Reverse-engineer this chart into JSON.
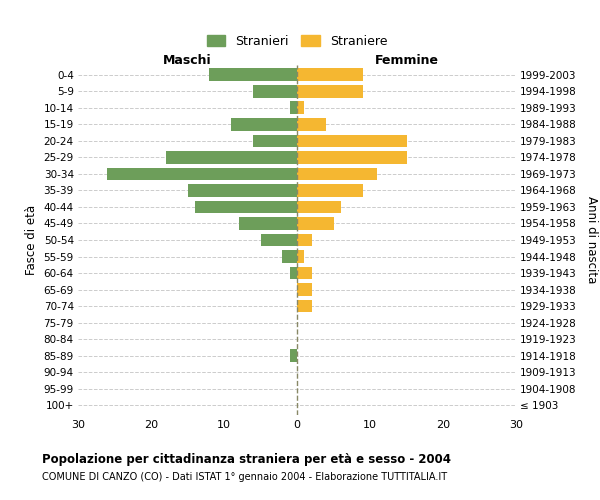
{
  "age_groups": [
    "100+",
    "95-99",
    "90-94",
    "85-89",
    "80-84",
    "75-79",
    "70-74",
    "65-69",
    "60-64",
    "55-59",
    "50-54",
    "45-49",
    "40-44",
    "35-39",
    "30-34",
    "25-29",
    "20-24",
    "15-19",
    "10-14",
    "5-9",
    "0-4"
  ],
  "birth_years": [
    "≤ 1903",
    "1904-1908",
    "1909-1913",
    "1914-1918",
    "1919-1923",
    "1924-1928",
    "1929-1933",
    "1934-1938",
    "1939-1943",
    "1944-1948",
    "1949-1953",
    "1954-1958",
    "1959-1963",
    "1964-1968",
    "1969-1973",
    "1974-1978",
    "1979-1983",
    "1984-1988",
    "1989-1993",
    "1994-1998",
    "1999-2003"
  ],
  "males": [
    0,
    0,
    0,
    1,
    0,
    0,
    0,
    0,
    1,
    2,
    5,
    8,
    14,
    15,
    26,
    18,
    6,
    9,
    1,
    6,
    12
  ],
  "females": [
    0,
    0,
    0,
    0,
    0,
    0,
    2,
    2,
    2,
    1,
    2,
    5,
    6,
    9,
    11,
    15,
    15,
    4,
    1,
    9,
    9
  ],
  "male_color": "#6d9e5a",
  "female_color": "#f5b731",
  "center_line_color": "#888866",
  "grid_color": "#cccccc",
  "xlim": 30,
  "title": "Popolazione per cittadinanza straniera per età e sesso - 2004",
  "subtitle": "COMUNE DI CANZO (CO) - Dati ISTAT 1° gennaio 2004 - Elaborazione TUTTITALIA.IT",
  "ylabel_left": "Fasce di età",
  "ylabel_right": "Anni di nascita",
  "xlabel_left": "Maschi",
  "xlabel_right": "Femmine",
  "legend_male": "Stranieri",
  "legend_female": "Straniere",
  "background_color": "#ffffff"
}
